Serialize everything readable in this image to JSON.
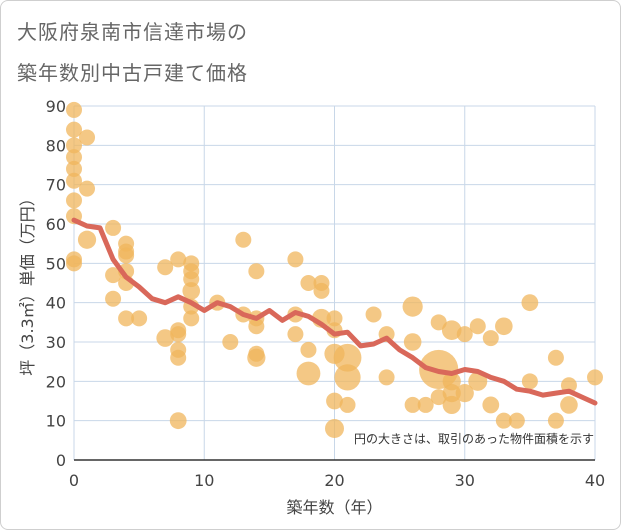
{
  "chart_data": {
    "type": "scatter",
    "title_line1": "大阪府泉南市信達市場の",
    "title_line2": "築年数別中古戸建て価格",
    "xlabel": "築年数（年）",
    "ylabel": "坪（3.3㎡）単価（万円）",
    "xlim": [
      0,
      40
    ],
    "ylim": [
      0,
      90
    ],
    "x_ticks": [
      "0",
      "10",
      "20",
      "30",
      "40"
    ],
    "y_ticks": [
      "0",
      "10",
      "20",
      "30",
      "40",
      "50",
      "60",
      "70",
      "80",
      "90"
    ],
    "note": "円の大きさは、取引のあった物件面積を示す",
    "colors": {
      "bubble": "#f0b55c",
      "trend": "#d9685a",
      "grid": "#c8d7e8"
    },
    "points": [
      {
        "x": 0,
        "y": 89,
        "s": 1
      },
      {
        "x": 0,
        "y": 84,
        "s": 1
      },
      {
        "x": 0,
        "y": 80,
        "s": 1
      },
      {
        "x": 0,
        "y": 77,
        "s": 1
      },
      {
        "x": 0,
        "y": 74,
        "s": 1
      },
      {
        "x": 0,
        "y": 71,
        "s": 1
      },
      {
        "x": 0,
        "y": 66,
        "s": 1
      },
      {
        "x": 0,
        "y": 62,
        "s": 1
      },
      {
        "x": 0,
        "y": 51,
        "s": 1
      },
      {
        "x": 0,
        "y": 50,
        "s": 1
      },
      {
        "x": 1,
        "y": 82,
        "s": 1
      },
      {
        "x": 1,
        "y": 69,
        "s": 1
      },
      {
        "x": 1,
        "y": 56,
        "s": 1.3
      },
      {
        "x": 3,
        "y": 59,
        "s": 1
      },
      {
        "x": 3,
        "y": 47,
        "s": 1
      },
      {
        "x": 3,
        "y": 41,
        "s": 1
      },
      {
        "x": 4,
        "y": 55,
        "s": 1
      },
      {
        "x": 4,
        "y": 53,
        "s": 1
      },
      {
        "x": 4,
        "y": 52,
        "s": 1
      },
      {
        "x": 4,
        "y": 48,
        "s": 1
      },
      {
        "x": 4,
        "y": 45,
        "s": 1
      },
      {
        "x": 4,
        "y": 36,
        "s": 1
      },
      {
        "x": 5,
        "y": 36,
        "s": 1
      },
      {
        "x": 7,
        "y": 49,
        "s": 1
      },
      {
        "x": 7,
        "y": 31,
        "s": 1.2
      },
      {
        "x": 8,
        "y": 51,
        "s": 1
      },
      {
        "x": 8,
        "y": 33,
        "s": 1
      },
      {
        "x": 8,
        "y": 32,
        "s": 1
      },
      {
        "x": 8,
        "y": 28,
        "s": 1
      },
      {
        "x": 8,
        "y": 26,
        "s": 1
      },
      {
        "x": 8,
        "y": 10,
        "s": 1.1
      },
      {
        "x": 9,
        "y": 50,
        "s": 1
      },
      {
        "x": 9,
        "y": 48,
        "s": 1
      },
      {
        "x": 9,
        "y": 46,
        "s": 1
      },
      {
        "x": 9,
        "y": 43,
        "s": 1.2
      },
      {
        "x": 9,
        "y": 39,
        "s": 1
      },
      {
        "x": 9,
        "y": 36,
        "s": 1
      },
      {
        "x": 11,
        "y": 40,
        "s": 1
      },
      {
        "x": 12,
        "y": 30,
        "s": 1
      },
      {
        "x": 13,
        "y": 56,
        "s": 1
      },
      {
        "x": 13,
        "y": 37,
        "s": 1
      },
      {
        "x": 14,
        "y": 48,
        "s": 1
      },
      {
        "x": 14,
        "y": 36,
        "s": 1
      },
      {
        "x": 14,
        "y": 34,
        "s": 1
      },
      {
        "x": 14,
        "y": 27,
        "s": 1
      },
      {
        "x": 14,
        "y": 26,
        "s": 1.3
      },
      {
        "x": 17,
        "y": 51,
        "s": 1
      },
      {
        "x": 17,
        "y": 37,
        "s": 1
      },
      {
        "x": 17,
        "y": 32,
        "s": 1
      },
      {
        "x": 18,
        "y": 45,
        "s": 1
      },
      {
        "x": 18,
        "y": 28,
        "s": 1
      },
      {
        "x": 18,
        "y": 22,
        "s": 2.2
      },
      {
        "x": 19,
        "y": 45,
        "s": 1
      },
      {
        "x": 19,
        "y": 43,
        "s": 1
      },
      {
        "x": 19,
        "y": 36,
        "s": 1.4
      },
      {
        "x": 20,
        "y": 36,
        "s": 1
      },
      {
        "x": 20,
        "y": 33,
        "s": 1
      },
      {
        "x": 20,
        "y": 27,
        "s": 1.6
      },
      {
        "x": 20,
        "y": 15,
        "s": 1.1
      },
      {
        "x": 20,
        "y": 8,
        "s": 1.4
      },
      {
        "x": 21,
        "y": 26,
        "s": 3
      },
      {
        "x": 21,
        "y": 21,
        "s": 2.7
      },
      {
        "x": 21,
        "y": 14,
        "s": 1
      },
      {
        "x": 23,
        "y": 37,
        "s": 1
      },
      {
        "x": 24,
        "y": 32,
        "s": 1
      },
      {
        "x": 24,
        "y": 21,
        "s": 1
      },
      {
        "x": 26,
        "y": 39,
        "s": 1.6
      },
      {
        "x": 26,
        "y": 30,
        "s": 1.2
      },
      {
        "x": 26,
        "y": 14,
        "s": 1
      },
      {
        "x": 27,
        "y": 14,
        "s": 1
      },
      {
        "x": 28,
        "y": 35,
        "s": 1
      },
      {
        "x": 28,
        "y": 23,
        "s": 6
      },
      {
        "x": 28,
        "y": 16,
        "s": 1
      },
      {
        "x": 29,
        "y": 33,
        "s": 1.5
      },
      {
        "x": 29,
        "y": 20,
        "s": 1.3
      },
      {
        "x": 29,
        "y": 17,
        "s": 1.3
      },
      {
        "x": 29,
        "y": 14,
        "s": 1.3
      },
      {
        "x": 30,
        "y": 32,
        "s": 1
      },
      {
        "x": 30,
        "y": 17,
        "s": 1.3
      },
      {
        "x": 31,
        "y": 34,
        "s": 1
      },
      {
        "x": 31,
        "y": 20,
        "s": 1.4
      },
      {
        "x": 32,
        "y": 31,
        "s": 1
      },
      {
        "x": 32,
        "y": 14,
        "s": 1.1
      },
      {
        "x": 33,
        "y": 34,
        "s": 1.2
      },
      {
        "x": 33,
        "y": 10,
        "s": 1
      },
      {
        "x": 34,
        "y": 10,
        "s": 1
      },
      {
        "x": 35,
        "y": 40,
        "s": 1.1
      },
      {
        "x": 35,
        "y": 20,
        "s": 1
      },
      {
        "x": 37,
        "y": 26,
        "s": 1
      },
      {
        "x": 37,
        "y": 10,
        "s": 1
      },
      {
        "x": 38,
        "y": 19,
        "s": 1
      },
      {
        "x": 38,
        "y": 14,
        "s": 1.2
      },
      {
        "x": 40,
        "y": 21,
        "s": 1
      }
    ],
    "trend": {
      "x": [
        0,
        1,
        2,
        3,
        4,
        5,
        6,
        7,
        8,
        9,
        10,
        11,
        12,
        13,
        14,
        15,
        16,
        17,
        18,
        19,
        20,
        21,
        22,
        23,
        24,
        25,
        26,
        27,
        28,
        29,
        30,
        31,
        32,
        33,
        34,
        35,
        36,
        37,
        38,
        39,
        40
      ],
      "y": [
        61,
        59.5,
        59,
        51,
        46.5,
        44,
        41,
        40,
        41.5,
        40,
        38,
        40,
        39,
        37,
        36,
        38,
        35.5,
        37.5,
        36.5,
        34.5,
        32,
        32.5,
        29,
        29.5,
        31,
        28,
        26,
        23.5,
        22.5,
        22,
        23,
        22.5,
        21,
        20,
        18,
        17.5,
        16.5,
        17,
        17.5,
        16,
        14.5
      ]
    }
  }
}
